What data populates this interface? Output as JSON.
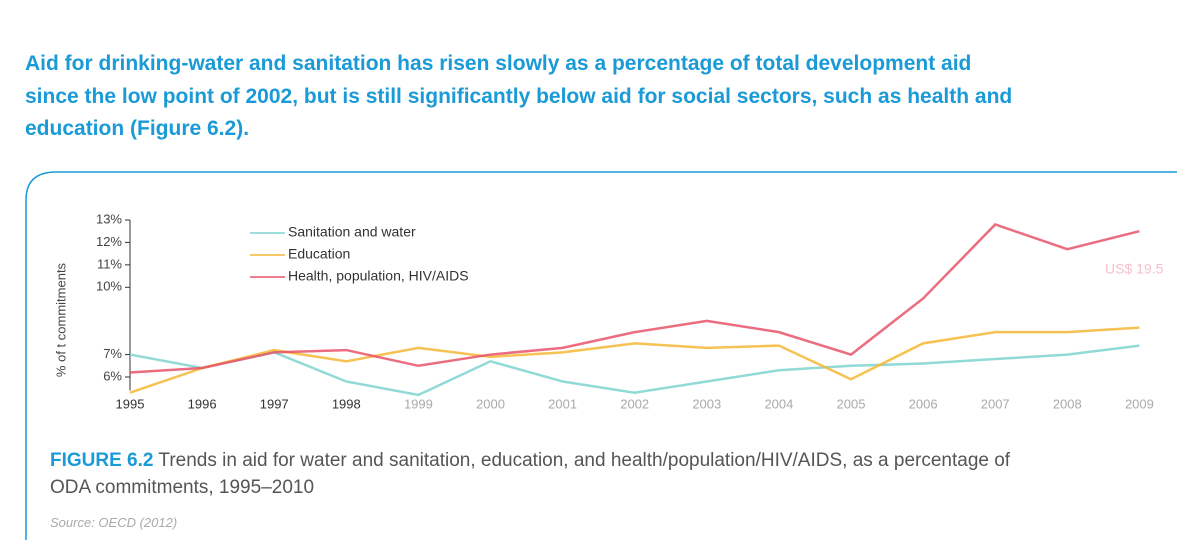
{
  "heading": {
    "lines": [
      "Aid for drinking-water and sanitation has risen slowly as a percentage of total development aid",
      "since the low point of 2002, but is still significantly below aid for social sectors, such as health and",
      "education (Figure 6.2)."
    ]
  },
  "chart_data": {
    "type": "line",
    "categories": [
      "1995",
      "1996",
      "1997",
      "1998",
      "1999",
      "2000",
      "2001",
      "2002",
      "2003",
      "2004",
      "2005",
      "2006",
      "2007",
      "2008",
      "2009"
    ],
    "series": [
      {
        "name": "Sanitation and water",
        "color": "#7fd3cf",
        "values": [
          7.0,
          6.4,
          7.1,
          5.8,
          5.2,
          6.7,
          5.8,
          5.3,
          5.8,
          6.3,
          6.5,
          6.6,
          6.8,
          7.0,
          7.4
        ]
      },
      {
        "name": "Education",
        "color": "#f5b735",
        "values": [
          5.3,
          6.4,
          7.2,
          6.7,
          7.3,
          6.9,
          7.1,
          7.5,
          7.3,
          7.4,
          5.9,
          7.5,
          8.0,
          8.0,
          8.2
        ]
      },
      {
        "name": "Health, population, HIV/AIDS",
        "color": "#e8536a",
        "values": [
          6.2,
          6.4,
          7.1,
          7.2,
          6.5,
          7.0,
          7.3,
          8.0,
          8.5,
          8.0,
          7.0,
          9.5,
          12.8,
          11.7,
          12.5
        ]
      }
    ],
    "y_label": "% of t commitments",
    "annotation": "US$ 19.5",
    "ylim": [
      5.4,
      13
    ],
    "yticks": [
      {
        "value": 6,
        "label": "6%"
      },
      {
        "value": 7,
        "label": "7%"
      },
      {
        "value": 10,
        "label": "10%"
      },
      {
        "value": 11,
        "label": "11%"
      },
      {
        "value": 12,
        "label": "12%"
      },
      {
        "value": 13,
        "label": "13%"
      }
    ]
  },
  "caption": {
    "label": "FIGURE 6.2",
    "text": " Trends in aid for water and sanitation, education, and health/population/HIV/AIDS, as a percentage of",
    "text2": "ODA commitments, 1995–2010"
  },
  "source": "Source: OECD (2012)"
}
